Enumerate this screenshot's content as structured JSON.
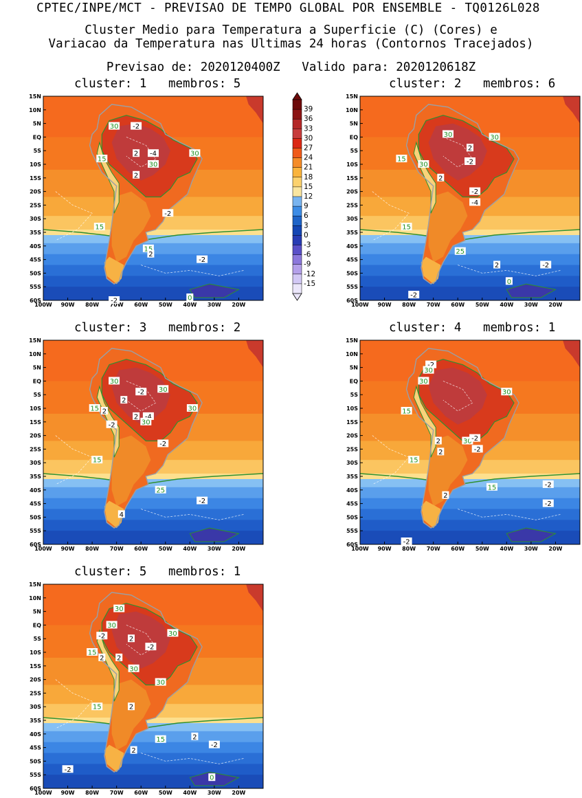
{
  "header": {
    "line1": "CPTEC/INPE/MCT - PREVISAO DE TEMPO GLOBAL POR ENSEMBLE - TQ0126L028",
    "line2": "Cluster Medio para Temperatura a Superficie (C) (Cores) e",
    "line3": "Variacao da Temperatura nas Ultimas 24 horas (Contornos Tracejados)",
    "line4": "Previsao de: 2020120400Z   Valido para: 2020120618Z"
  },
  "axes": {
    "lat_labels": [
      "15N",
      "10N",
      "5N",
      "EQ",
      "5S",
      "10S",
      "15S",
      "20S",
      "25S",
      "30S",
      "35S",
      "40S",
      "45S",
      "50S",
      "55S",
      "60S"
    ],
    "lon_labels": [
      "100W",
      "90W",
      "80W",
      "70W",
      "60W",
      "50W",
      "40W",
      "30W",
      "20W"
    ]
  },
  "colorbar": {
    "labels": [
      "39",
      "36",
      "33",
      "30",
      "27",
      "24",
      "21",
      "18",
      "15",
      "12",
      "9",
      "6",
      "3",
      "0",
      "-3",
      "-6",
      "-9",
      "-12",
      "-15"
    ],
    "colors": [
      "#6e0a0a",
      "#8c1414",
      "#b42828",
      "#c83c3c",
      "#dc2814",
      "#f05a19",
      "#f58c28",
      "#fab43c",
      "#fcd26e",
      "#fae6a0",
      "#78b4f0",
      "#3c8ce6",
      "#1e64c8",
      "#1446b4",
      "#283cb4",
      "#5a50c8",
      "#8c78dc",
      "#b4a0ea",
      "#d2c8f5",
      "#ebe6fa"
    ]
  },
  "panels": [
    {
      "title": "cluster: 1   membros: 5",
      "labels": [
        {
          "t": "30",
          "lon": -71,
          "lat": 4,
          "g": true
        },
        {
          "t": "-2",
          "lon": -62,
          "lat": 4
        },
        {
          "t": "2",
          "lon": -62,
          "lat": -6
        },
        {
          "t": "-4",
          "lon": -55,
          "lat": -6
        },
        {
          "t": "30",
          "lon": -55,
          "lat": -10,
          "g": true
        },
        {
          "t": "30",
          "lon": -38,
          "lat": -6,
          "g": true
        },
        {
          "t": "15",
          "lon": -76,
          "lat": -8,
          "g": true
        },
        {
          "t": "2",
          "lon": -62,
          "lat": -14
        },
        {
          "t": "-2",
          "lon": -49,
          "lat": -28
        },
        {
          "t": "15",
          "lon": -77,
          "lat": -33,
          "g": true
        },
        {
          "t": "15",
          "lon": -57,
          "lat": -41,
          "g": true
        },
        {
          "t": "2",
          "lon": -56,
          "lat": -43
        },
        {
          "t": "-2",
          "lon": -35,
          "lat": -45
        },
        {
          "t": "-2",
          "lon": -71,
          "lat": -60
        },
        {
          "t": "0",
          "lon": -40,
          "lat": -59,
          "g": true
        }
      ]
    },
    {
      "title": "cluster: 2   membros: 6",
      "labels": [
        {
          "t": "30",
          "lon": -64,
          "lat": 1,
          "g": true
        },
        {
          "t": "30",
          "lon": -45,
          "lat": 0,
          "g": true
        },
        {
          "t": "2",
          "lon": -55,
          "lat": -4
        },
        {
          "t": "15",
          "lon": -83,
          "lat": -8,
          "g": true
        },
        {
          "t": "30",
          "lon": -74,
          "lat": -10,
          "g": true
        },
        {
          "t": "-2",
          "lon": -55,
          "lat": -9
        },
        {
          "t": "2",
          "lon": -67,
          "lat": -15
        },
        {
          "t": "-2",
          "lon": -53,
          "lat": -20
        },
        {
          "t": "-4",
          "lon": -53,
          "lat": -24
        },
        {
          "t": "15",
          "lon": -81,
          "lat": -33,
          "g": true
        },
        {
          "t": "25",
          "lon": -59,
          "lat": -42,
          "g": true
        },
        {
          "t": "2",
          "lon": -44,
          "lat": -47
        },
        {
          "t": "-2",
          "lon": -24,
          "lat": -47
        },
        {
          "t": "0",
          "lon": -39,
          "lat": -53,
          "g": true
        },
        {
          "t": "-2",
          "lon": -78,
          "lat": -58
        }
      ]
    },
    {
      "title": "cluster: 3   membros: 2",
      "labels": [
        {
          "t": "30",
          "lon": -71,
          "lat": 0,
          "g": true
        },
        {
          "t": "30",
          "lon": -51,
          "lat": -3,
          "g": true
        },
        {
          "t": "2",
          "lon": -67,
          "lat": -7
        },
        {
          "t": "-2",
          "lon": -60,
          "lat": -4
        },
        {
          "t": "15",
          "lon": -79,
          "lat": -10,
          "g": true
        },
        {
          "t": "2",
          "lon": -75,
          "lat": -11
        },
        {
          "t": "2",
          "lon": -62,
          "lat": -13
        },
        {
          "t": "-4",
          "lon": -57,
          "lat": -13
        },
        {
          "t": "-2",
          "lon": -72,
          "lat": -16
        },
        {
          "t": "30",
          "lon": -39,
          "lat": -10,
          "g": true
        },
        {
          "t": "30",
          "lon": -58,
          "lat": -15,
          "g": true
        },
        {
          "t": "-2",
          "lon": -51,
          "lat": -23
        },
        {
          "t": "15",
          "lon": -78,
          "lat": -29,
          "g": true
        },
        {
          "t": "25",
          "lon": -52,
          "lat": -40,
          "g": true
        },
        {
          "t": "-2",
          "lon": -35,
          "lat": -44
        },
        {
          "t": "4",
          "lon": -68,
          "lat": -49
        }
      ]
    },
    {
      "title": "cluster: 4   membros: 1",
      "labels": [
        {
          "t": "-2",
          "lon": -71,
          "lat": 6
        },
        {
          "t": "30",
          "lon": -72,
          "lat": 4,
          "g": true
        },
        {
          "t": "30",
          "lon": -74,
          "lat": 0,
          "g": true
        },
        {
          "t": "30",
          "lon": -40,
          "lat": -4,
          "g": true
        },
        {
          "t": "15",
          "lon": -81,
          "lat": -11,
          "g": true
        },
        {
          "t": "2",
          "lon": -68,
          "lat": -22
        },
        {
          "t": "2",
          "lon": -67,
          "lat": -26
        },
        {
          "t": "30",
          "lon": -56,
          "lat": -22,
          "g": true
        },
        {
          "t": "-2",
          "lon": -53,
          "lat": -21
        },
        {
          "t": "-2",
          "lon": -52,
          "lat": -25
        },
        {
          "t": "15",
          "lon": -78,
          "lat": -29,
          "g": true
        },
        {
          "t": "15",
          "lon": -46,
          "lat": -39,
          "g": true
        },
        {
          "t": "2",
          "lon": -65,
          "lat": -42
        },
        {
          "t": "-2",
          "lon": -23,
          "lat": -38
        },
        {
          "t": "-2",
          "lon": -23,
          "lat": -45
        },
        {
          "t": "-2",
          "lon": -81,
          "lat": -59
        }
      ]
    },
    {
      "title": "cluster: 5   membros: 1",
      "labels": [
        {
          "t": "30",
          "lon": -69,
          "lat": 6,
          "g": true
        },
        {
          "t": "30",
          "lon": -72,
          "lat": 0,
          "g": true
        },
        {
          "t": "-2",
          "lon": -76,
          "lat": -4
        },
        {
          "t": "30",
          "lon": -47,
          "lat": -3,
          "g": true
        },
        {
          "t": "2",
          "lon": -64,
          "lat": -5
        },
        {
          "t": "-2",
          "lon": -56,
          "lat": -8
        },
        {
          "t": "15",
          "lon": -80,
          "lat": -10,
          "g": true
        },
        {
          "t": "2",
          "lon": -76,
          "lat": -12
        },
        {
          "t": "2",
          "lon": -69,
          "lat": -12
        },
        {
          "t": "30",
          "lon": -63,
          "lat": -16,
          "g": true
        },
        {
          "t": "30",
          "lon": -52,
          "lat": -21,
          "g": true
        },
        {
          "t": "2",
          "lon": -64,
          "lat": -30
        },
        {
          "t": "15",
          "lon": -78,
          "lat": -30,
          "g": true
        },
        {
          "t": "15",
          "lon": -52,
          "lat": -42,
          "g": true
        },
        {
          "t": "2",
          "lon": -38,
          "lat": -41
        },
        {
          "t": "-2",
          "lon": -30,
          "lat": -44
        },
        {
          "t": "2",
          "lon": -63,
          "lat": -46
        },
        {
          "t": "-2",
          "lon": -90,
          "lat": -53
        },
        {
          "t": "0",
          "lon": -31,
          "lat": -56,
          "g": true
        }
      ]
    }
  ]
}
